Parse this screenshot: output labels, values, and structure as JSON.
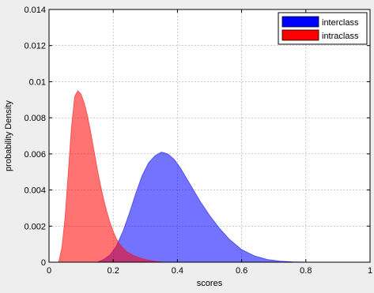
{
  "chart_data": {
    "type": "area",
    "title": "",
    "xlabel": "scores",
    "ylabel": "probability Density",
    "xlim": [
      0,
      1
    ],
    "ylim": [
      0,
      0.014
    ],
    "xticks": [
      0,
      0.2,
      0.4,
      0.6,
      0.8,
      1
    ],
    "xtick_labels": [
      "0",
      "0.2",
      "0.4",
      "0.6",
      "0.8",
      "1"
    ],
    "yticks": [
      0,
      0.002,
      0.004,
      0.006,
      0.008,
      0.01,
      0.012,
      0.014
    ],
    "ytick_labels": [
      "0",
      "0.002",
      "0.004",
      "0.006",
      "0.008",
      "0.01",
      "0.012",
      "0.014"
    ],
    "grid": true,
    "legend_position": "top-right",
    "series": [
      {
        "name": "interclass",
        "color": "#0000ff",
        "x": [
          0.15,
          0.17,
          0.19,
          0.21,
          0.23,
          0.25,
          0.27,
          0.29,
          0.31,
          0.33,
          0.35,
          0.37,
          0.39,
          0.41,
          0.43,
          0.45,
          0.47,
          0.5,
          0.53,
          0.56,
          0.6,
          0.64,
          0.68,
          0.72,
          0.76,
          0.8,
          0.84
        ],
        "y": [
          0.0,
          0.00015,
          0.0004,
          0.0009,
          0.0017,
          0.0027,
          0.0038,
          0.0048,
          0.0055,
          0.0059,
          0.0061,
          0.006,
          0.0057,
          0.0052,
          0.0046,
          0.004,
          0.0034,
          0.0026,
          0.0019,
          0.0013,
          0.0007,
          0.00035,
          0.00015,
          6e-05,
          2e-05,
          5e-06,
          0.0
        ]
      },
      {
        "name": "intraclass",
        "color": "#ff0000",
        "x": [
          0.03,
          0.04,
          0.05,
          0.06,
          0.07,
          0.08,
          0.09,
          0.1,
          0.11,
          0.12,
          0.13,
          0.14,
          0.15,
          0.16,
          0.17,
          0.18,
          0.19,
          0.2,
          0.21,
          0.22,
          0.23,
          0.24,
          0.26,
          0.28,
          0.3,
          0.33,
          0.36
        ],
        "y": [
          0.0,
          0.0008,
          0.0025,
          0.005,
          0.0075,
          0.0092,
          0.0095,
          0.0093,
          0.0088,
          0.0081,
          0.0072,
          0.0062,
          0.0052,
          0.0043,
          0.0035,
          0.0028,
          0.0022,
          0.0017,
          0.0013,
          0.001,
          0.0008,
          0.0006,
          0.0004,
          0.00025,
          0.00015,
          5e-05,
          0.0
        ]
      }
    ]
  }
}
